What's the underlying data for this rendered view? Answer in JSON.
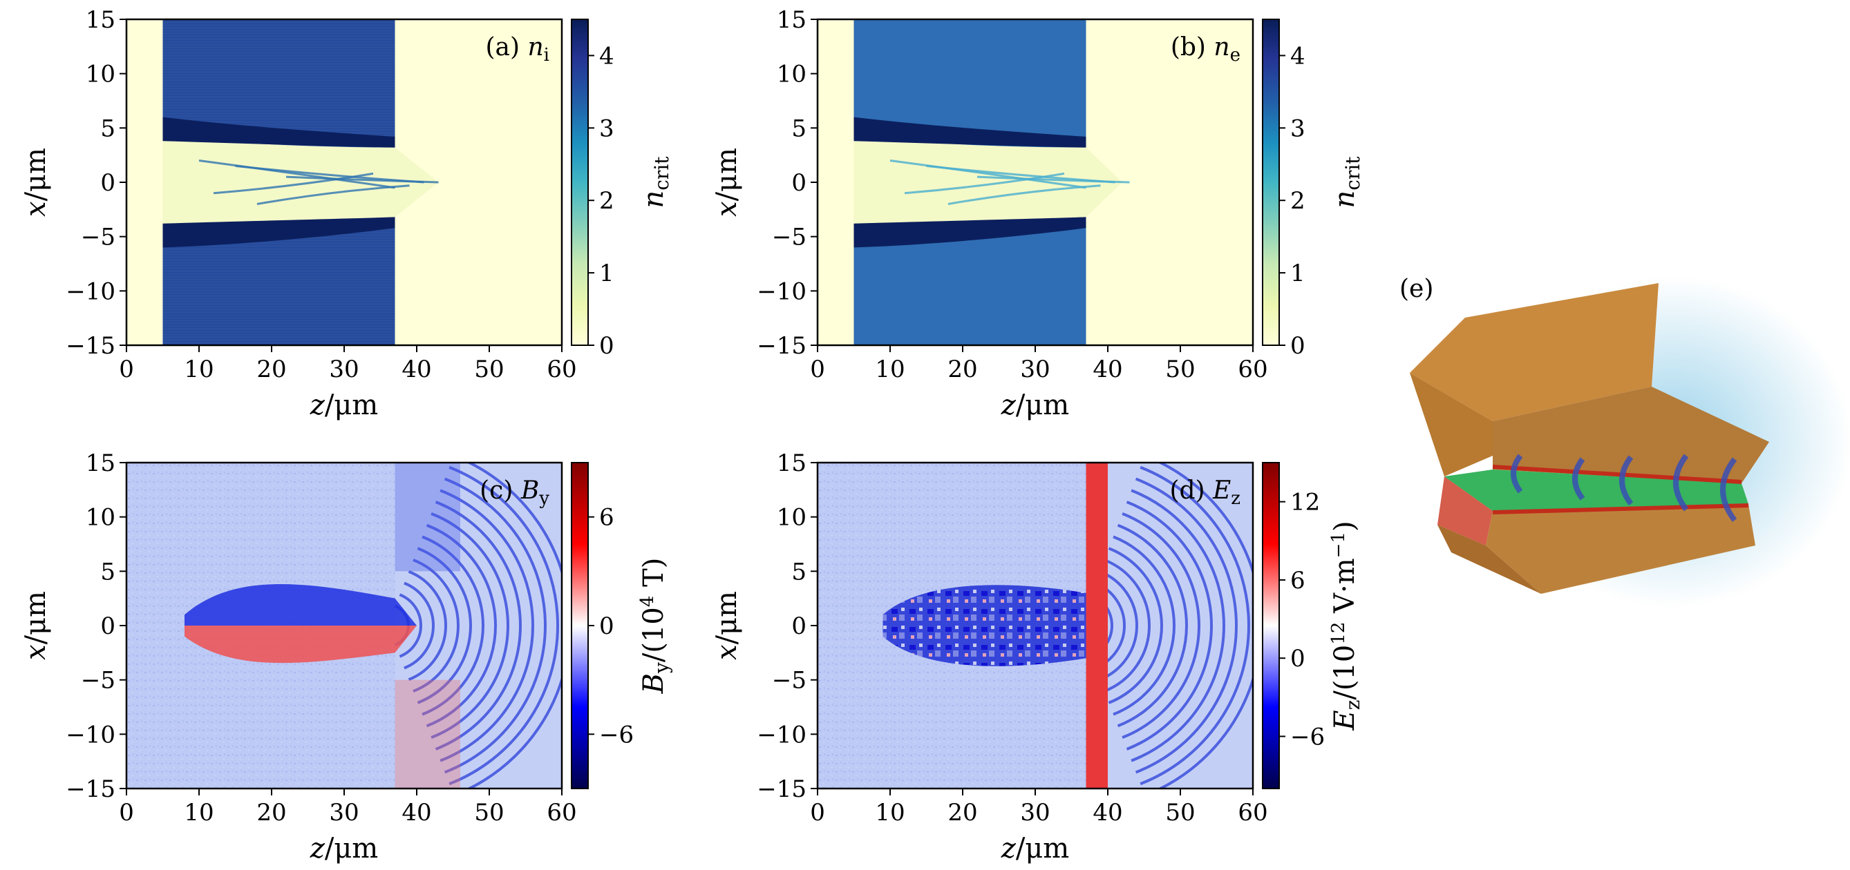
{
  "chart_data": [
    {
      "type": "heatmap",
      "panel": "a",
      "label_prefix": "(a)",
      "label_symbol": "n",
      "label_sub": "i",
      "xlabel_var": "z",
      "xlabel_unit": "/μm",
      "ylabel_var": "x",
      "ylabel_unit": "/μm",
      "xlim": [
        0,
        60
      ],
      "ylim": [
        -15,
        15
      ],
      "xticks": [
        "0",
        "10",
        "20",
        "30",
        "40",
        "50",
        "60"
      ],
      "yticks": [
        "15",
        "10",
        "5",
        "0",
        "−5",
        "−10",
        "−15"
      ],
      "colorbar": {
        "label_main": "n",
        "label_sub": "crit",
        "range": [
          0,
          4.5
        ],
        "ticks": [
          "0",
          "1",
          "2",
          "3",
          "4"
        ],
        "colormap": "YlGnBu"
      },
      "description": "target 5–37 μm at ~4.2 n_crit; channel |x|<4 with spike to ~43 μm"
    },
    {
      "type": "heatmap",
      "panel": "b",
      "label_prefix": "(b)",
      "label_symbol": "n",
      "label_sub": "e",
      "xlabel_var": "z",
      "xlabel_unit": "/μm",
      "ylabel_var": "x",
      "ylabel_unit": "/μm",
      "xlim": [
        0,
        60
      ],
      "ylim": [
        -15,
        15
      ],
      "xticks": [
        "0",
        "10",
        "20",
        "30",
        "40",
        "50",
        "60"
      ],
      "yticks": [
        "15",
        "10",
        "5",
        "0",
        "−5",
        "−10",
        "−15"
      ],
      "colorbar": {
        "label_main": "n",
        "label_sub": "crit",
        "range": [
          0,
          4.5
        ],
        "ticks": [
          "0",
          "1",
          "2",
          "3",
          "4"
        ],
        "colormap": "YlGnBu"
      },
      "description": "target 5–37 μm at ~3.2 n_crit; channel |x|<4 with plume to ~43 μm"
    },
    {
      "type": "heatmap",
      "panel": "c",
      "label_prefix": "(c)",
      "label_symbol": "B",
      "label_sub": "y",
      "xlabel_var": "z",
      "xlabel_unit": "/μm",
      "ylabel_var": "x",
      "ylabel_unit": "/μm",
      "xlim": [
        0,
        60
      ],
      "ylim": [
        -15,
        15
      ],
      "xticks": [
        "0",
        "10",
        "20",
        "30",
        "40",
        "50",
        "60"
      ],
      "yticks": [
        "15",
        "10",
        "5",
        "0",
        "−5",
        "−10",
        "−15"
      ],
      "colorbar": {
        "label_main": "B",
        "label_sub": "y",
        "label_unit_pre": "/(10",
        "label_exp": "4",
        "label_unit_post": " T)",
        "range": [
          -9,
          9
        ],
        "ticks": [
          "6",
          "0",
          "−6"
        ],
        "colormap": "seismic"
      },
      "description": "negative B_y above axis, positive below; curved wavefronts centered near 36 μm"
    },
    {
      "type": "heatmap",
      "panel": "d",
      "label_prefix": "(d)",
      "label_symbol": "E",
      "label_sub": "z",
      "xlabel_var": "z",
      "xlabel_unit": "/μm",
      "ylabel_var": "x",
      "ylabel_unit": "/μm",
      "xlim": [
        0,
        60
      ],
      "ylim": [
        -15,
        15
      ],
      "xticks": [
        "0",
        "10",
        "20",
        "30",
        "40",
        "50",
        "60"
      ],
      "yticks": [
        "15",
        "10",
        "5",
        "0",
        "−5",
        "−10",
        "−15"
      ],
      "colorbar": {
        "label_main": "E",
        "label_sub": "z",
        "label_unit_pre": "/(10",
        "label_exp": "12",
        "label_unit_post": " V·m",
        "label_exp2": "−1",
        "label_unit_end": ")",
        "range": [
          -10,
          15
        ],
        "ticks": [
          "12",
          "6",
          "0",
          "−6"
        ],
        "colormap": "seismic"
      },
      "description": "noisy blue E_z inside channel; strong red front at 37–40 μm with arcs"
    }
  ],
  "panel_e": {
    "label": "(e)",
    "description": "3D volume render of target with channel"
  }
}
